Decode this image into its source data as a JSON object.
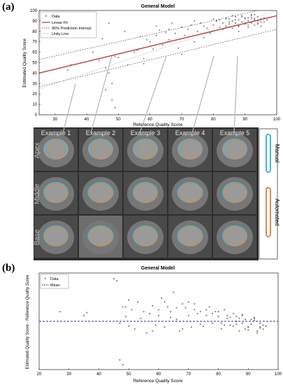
{
  "panel_a": {
    "letter": "(a)"
  },
  "panel_b": {
    "letter": "(b)"
  },
  "chart_data": [
    {
      "type": "scatter",
      "title": "General Model",
      "xlabel": "Reference Quality Score",
      "ylabel": "Estimated Quality Score",
      "xlim": [
        25,
        100
      ],
      "ylim": [
        0,
        100
      ],
      "xticks": [
        "30",
        "40",
        "50",
        "60",
        "70",
        "80",
        "90",
        "100"
      ],
      "yticks": [
        "0",
        "10",
        "20",
        "30",
        "40",
        "50",
        "60",
        "70",
        "80",
        "90",
        "100"
      ],
      "legend": [
        "Data",
        "Linear Fit",
        "95% Prediction Interval",
        "Unity Line"
      ],
      "legend_position": "top-left",
      "grid": false,
      "linear_fit": {
        "x": [
          25,
          100
        ],
        "y": [
          40,
          95
        ]
      },
      "prediction_interval_upper": {
        "x": [
          25,
          100
        ],
        "y": [
          53,
          104
        ]
      },
      "prediction_interval_lower": {
        "x": [
          25,
          100
        ],
        "y": [
          27,
          82
        ]
      },
      "unity_line": {
        "x": [
          25,
          100
        ],
        "y": [
          25,
          100
        ]
      },
      "series": [
        {
          "name": "Data",
          "x": [
            34,
            35,
            42,
            44,
            45,
            46,
            47,
            47,
            48,
            48,
            49,
            49,
            50,
            52,
            53,
            55,
            56,
            57,
            58,
            59,
            60,
            61,
            62,
            63,
            64,
            65,
            66,
            67,
            68,
            69,
            70,
            71,
            72,
            73,
            74,
            75,
            76,
            77,
            78,
            79,
            80,
            81,
            82,
            82,
            83,
            84,
            84,
            85,
            85,
            86,
            86,
            87,
            87,
            88,
            88,
            89,
            89,
            90,
            90,
            91,
            91,
            92,
            92,
            93,
            93,
            94,
            94,
            95,
            95,
            96,
            96,
            97,
            83,
            86,
            88,
            90,
            92,
            94,
            80,
            85,
            89,
            91,
            93,
            95,
            87,
            90,
            92,
            94,
            77,
            81,
            84,
            88,
            91,
            93,
            62,
            66,
            70,
            74,
            58,
            46
          ],
          "y": [
            43,
            48,
            60,
            52,
            73,
            45,
            40,
            88,
            30,
            14,
            56,
            7,
            55,
            80,
            48,
            60,
            62,
            75,
            49,
            72,
            70,
            63,
            76,
            81,
            67,
            79,
            72,
            88,
            78,
            64,
            84,
            76,
            82,
            86,
            70,
            80,
            88,
            85,
            83,
            78,
            86,
            90,
            84,
            91,
            88,
            85,
            93,
            87,
            92,
            83,
            90,
            88,
            94,
            85,
            91,
            89,
            95,
            87,
            92,
            90,
            84,
            93,
            88,
            91,
            86,
            94,
            90,
            92,
            85,
            93,
            89,
            91,
            82,
            95,
            80,
            93,
            96,
            88,
            92,
            89,
            94,
            86,
            92,
            89,
            91,
            88,
            95,
            87,
            74,
            90,
            92,
            85,
            93,
            96,
            85,
            82,
            58,
            90,
            54,
            24
          ]
        }
      ]
    },
    {
      "type": "scatter",
      "title": "General Model",
      "xlabel": "Reference Quality Score",
      "ylabel": "Estimated Quality Score - Reference Quality Score",
      "xlim": [
        20,
        100
      ],
      "ylim": [
        -50,
        50
      ],
      "xticks": [
        "20",
        "30",
        "40",
        "50",
        "60",
        "70",
        "80",
        "90",
        "100"
      ],
      "legend": [
        "Data",
        "Mean"
      ],
      "legend_position": "top-left",
      "grid": false,
      "mean": 0,
      "series": [
        {
          "name": "Data",
          "x": [
            27,
            35,
            36,
            45,
            46,
            47,
            48,
            49,
            49,
            50,
            50,
            51,
            52,
            53,
            54,
            55,
            56,
            57,
            58,
            59,
            60,
            61,
            62,
            63,
            64,
            65,
            66,
            67,
            68,
            69,
            70,
            71,
            72,
            73,
            74,
            75,
            76,
            77,
            78,
            79,
            80,
            81,
            82,
            83,
            84,
            85,
            86,
            87,
            88,
            89,
            90,
            91,
            92,
            93,
            94,
            95,
            96,
            81,
            83,
            85,
            87,
            89,
            91,
            93,
            95,
            84,
            86,
            88,
            90,
            92,
            94,
            80,
            82,
            86,
            88,
            90,
            92,
            94,
            78,
            76,
            74,
            72,
            70,
            68,
            66,
            64,
            62,
            60,
            58,
            48,
            47
          ],
          "y": [
            10,
            6,
            9,
            44,
            42,
            -40,
            -45,
            5,
            15,
            -5,
            22,
            12,
            -8,
            20,
            3,
            10,
            -12,
            8,
            16,
            -4,
            12,
            24,
            -6,
            15,
            10,
            30,
            2,
            -10,
            18,
            14,
            20,
            -6,
            12,
            8,
            10,
            -5,
            6,
            15,
            -2,
            10,
            5,
            -8,
            12,
            3,
            -4,
            8,
            0,
            -10,
            6,
            2,
            -6,
            -3,
            4,
            -12,
            -2,
            -8,
            -5,
            -2,
            6,
            -5,
            3,
            -8,
            2,
            -10,
            -4,
            4,
            -3,
            7,
            -6,
            1,
            -7,
            10,
            -4,
            5,
            -2,
            -9,
            3,
            -6,
            8,
            12,
            -3,
            18,
            6,
            -8,
            14,
            4,
            20,
            6,
            -10,
            15,
            -2
          ]
        }
      ]
    }
  ],
  "mri_panel": {
    "columns": [
      "Example 1",
      "Example 2",
      "Example 3",
      "Example 4",
      "Example 5"
    ],
    "rows": [
      "Apex",
      "Middle",
      "Base"
    ],
    "legend": [
      "Manual",
      "Automated"
    ],
    "colors": {
      "manual": "#3fb7d8",
      "automated": "#d98a4a"
    }
  }
}
